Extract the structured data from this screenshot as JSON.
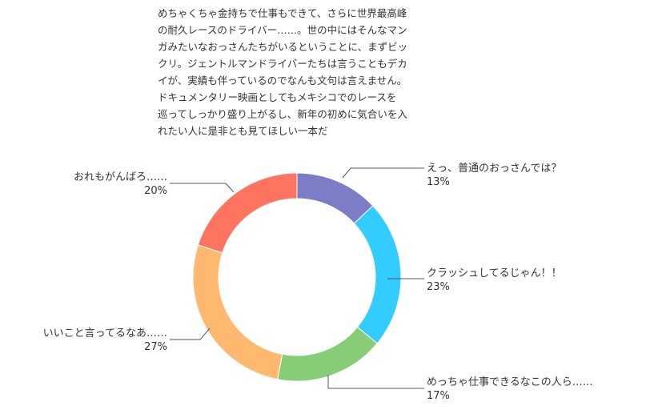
{
  "review": {
    "lines": [
      "めちゃくちゃ金持ちで仕事もできて、さらに世界最高峰",
      "の耐久レースのドライバー……。世の中にはそんなマン",
      "ガみたいなおっさんたちがいるということに、まずビッ",
      "クリ。ジェントルマンドライバーたちは言うこともデカ",
      "イが、実績も伴っているのでなんも文句は言えません。",
      "ドキュメンタリー映画としてもメキシコでのレースを",
      "巡ってしっかり盛り上がるし、新年の初めに気合いを入",
      "れたい人に是非とも見てほしい一本だ"
    ]
  },
  "chart_data": {
    "type": "pie",
    "donut": true,
    "categories": [
      "えっ、普通のおっさんでは？",
      "クラッシュしてるじゃん！！",
      "めっちゃ仕事できるなこの人ら……",
      "いいこと言ってるなあ……",
      "おれもがんばろ……"
    ],
    "values": [
      13,
      23,
      17,
      27,
      20
    ],
    "value_labels": [
      "13%",
      "23%",
      "17%",
      "27%",
      "20%"
    ],
    "colors": [
      "#7b7ec6",
      "#33ccff",
      "#88cc77",
      "#ffb870",
      "#ff7461"
    ]
  }
}
